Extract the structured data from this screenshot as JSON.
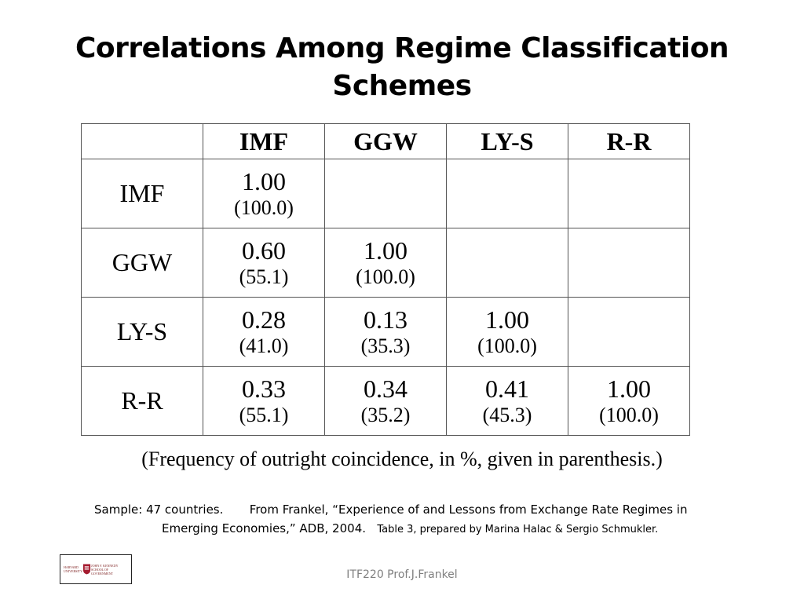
{
  "title": {
    "line1": "Correlations Among Regime Classification",
    "line2": "Schemes"
  },
  "table": {
    "columns": [
      "IMF",
      "GGW",
      "LY-S",
      "R-R"
    ],
    "rows": [
      {
        "label": "IMF",
        "cells": [
          {
            "v": "1.00",
            "p": "(100.0)"
          },
          null,
          null,
          null
        ]
      },
      {
        "label": "GGW",
        "cells": [
          {
            "v": "0.60",
            "p": "(55.1)"
          },
          {
            "v": "1.00",
            "p": "(100.0)"
          },
          null,
          null
        ]
      },
      {
        "label": "LY-S",
        "cells": [
          {
            "v": "0.28",
            "p": "(41.0)"
          },
          {
            "v": "0.13",
            "p": "(35.3)"
          },
          {
            "v": "1.00",
            "p": "(100.0)"
          },
          null
        ]
      },
      {
        "label": "R-R",
        "cells": [
          {
            "v": "0.33",
            "p": "(55.1)"
          },
          {
            "v": "0.34",
            "p": "(35.2)"
          },
          {
            "v": "0.41",
            "p": "(45.3)"
          },
          {
            "v": "1.00",
            "p": "(100.0)"
          }
        ]
      }
    ]
  },
  "note": "(Frequency of outright coincidence, in %, given in parenthesis.)",
  "source": {
    "sample": "Sample: 47 countries.",
    "citation_a": "From Frankel, “Experience of and Lessons from Exchange Rate Regimes in",
    "citation_b": "Emerging Economies,”  ADB, 2004.",
    "credit": "Table 3, prepared by Marina Halac & Sergio Schmukler."
  },
  "footer": "ITF220 Prof.J.Frankel",
  "logo": {
    "text_left": "HARVARD UNIVERSITY",
    "text_right": "JOHN F. KENNEDY SCHOOL OF GOVERNMENT",
    "crest_color": "#a51c30"
  }
}
